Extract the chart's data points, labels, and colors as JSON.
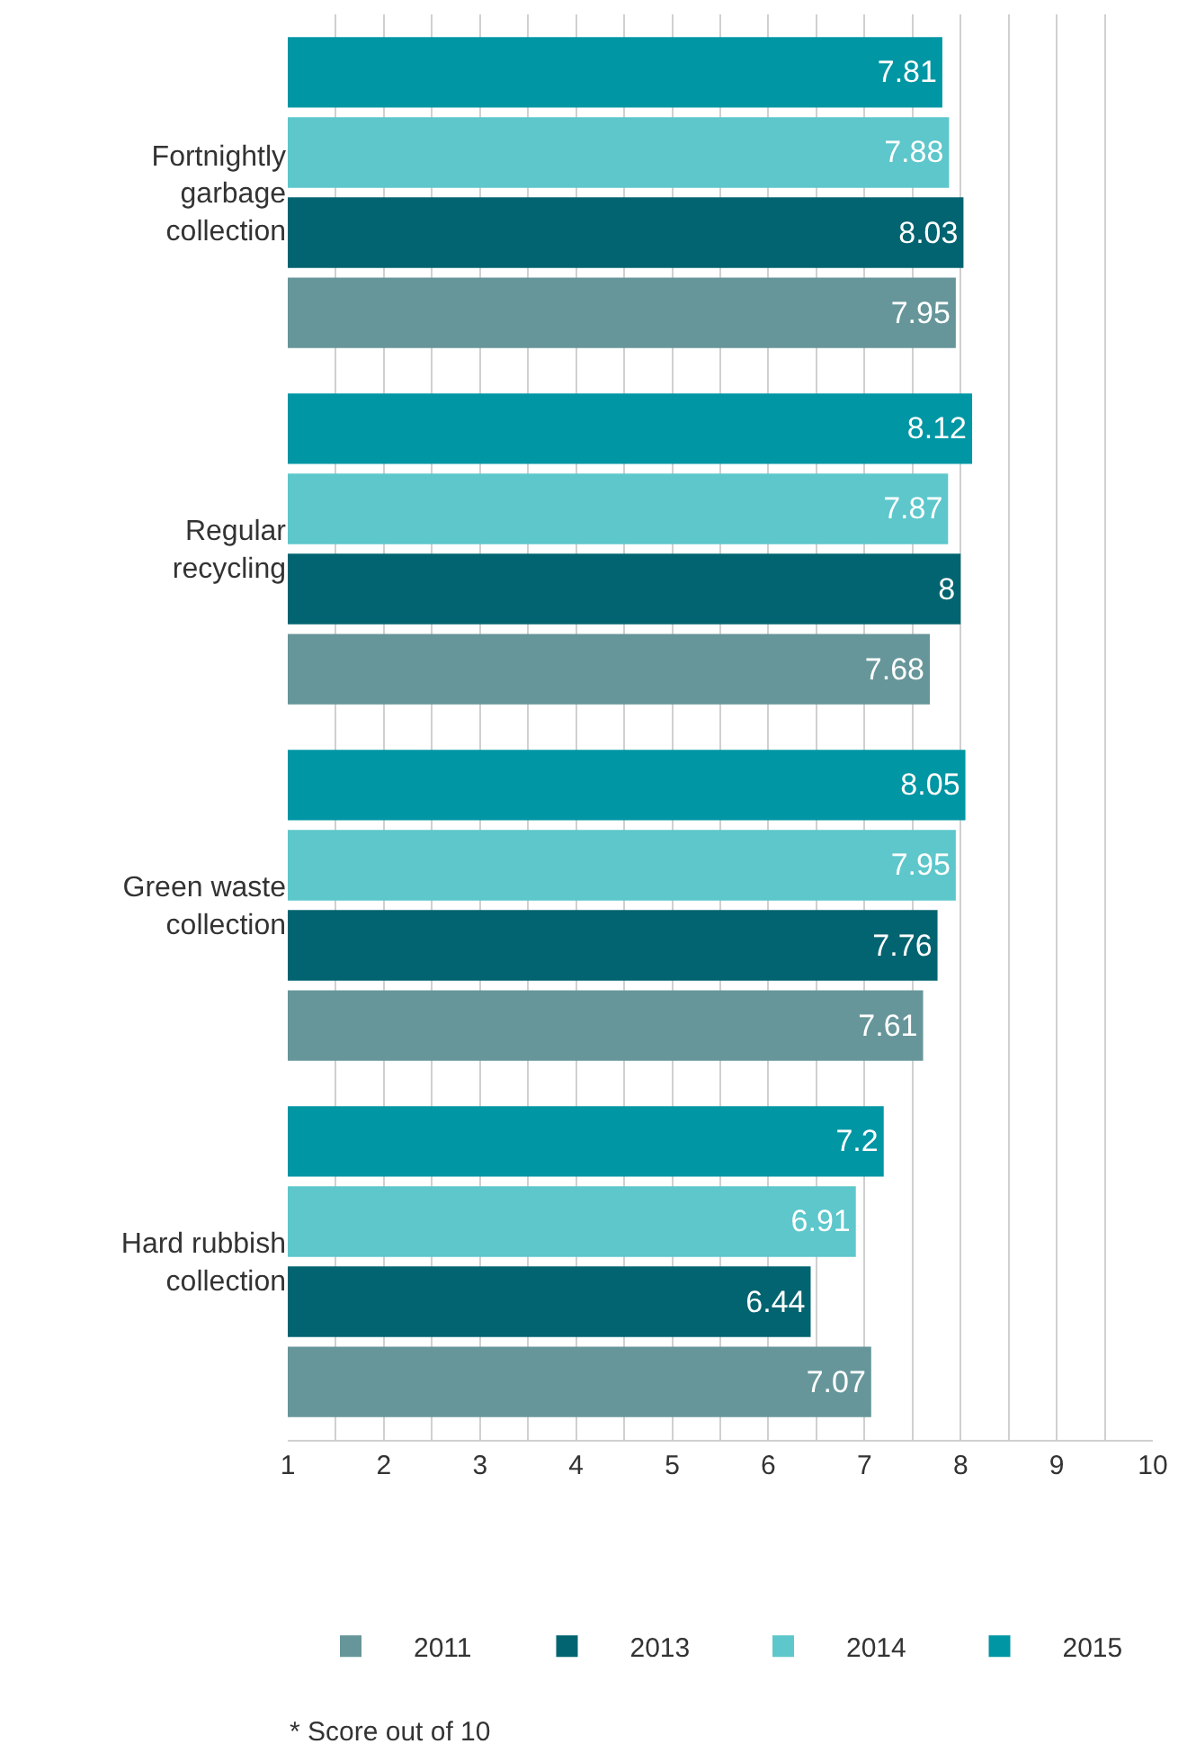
{
  "chart_data": {
    "type": "bar",
    "orientation": "horizontal",
    "categories": [
      "Fortnightly garbage collection",
      "Regular recycling",
      "Green waste collection",
      "Hard rubbish collection"
    ],
    "series": [
      {
        "name": "2011",
        "color": "#66969a",
        "values": [
          7.95,
          7.68,
          7.61,
          7.07
        ]
      },
      {
        "name": "2013",
        "color": "#026470",
        "values": [
          8.03,
          8,
          7.76,
          6.44
        ]
      },
      {
        "name": "2014",
        "color": "#5dc7cb",
        "values": [
          7.88,
          7.87,
          7.95,
          6.91
        ]
      },
      {
        "name": "2015",
        "color": "#0096a4",
        "values": [
          7.81,
          8.12,
          8.05,
          7.2
        ]
      }
    ],
    "xlim": [
      1,
      10
    ],
    "xticks": [
      1,
      {
        "value": 1.5,
        "label": null
      },
      2,
      {
        "value": 2.5,
        "label": null
      },
      3,
      {
        "value": 3.5,
        "label": null
      },
      4,
      {
        "value": 4.5,
        "label": null
      },
      5,
      {
        "value": 5.5,
        "label": null
      },
      6,
      {
        "value": 6.5,
        "label": null
      },
      7,
      {
        "value": 7.5,
        "label": null
      },
      8,
      {
        "value": 8.5,
        "label": null
      },
      9,
      {
        "value": 9.5,
        "label": null
      },
      10
    ],
    "grid": "x",
    "legend": "bottom",
    "data_labels": true,
    "annotations": [
      "* Score out of 10"
    ]
  }
}
